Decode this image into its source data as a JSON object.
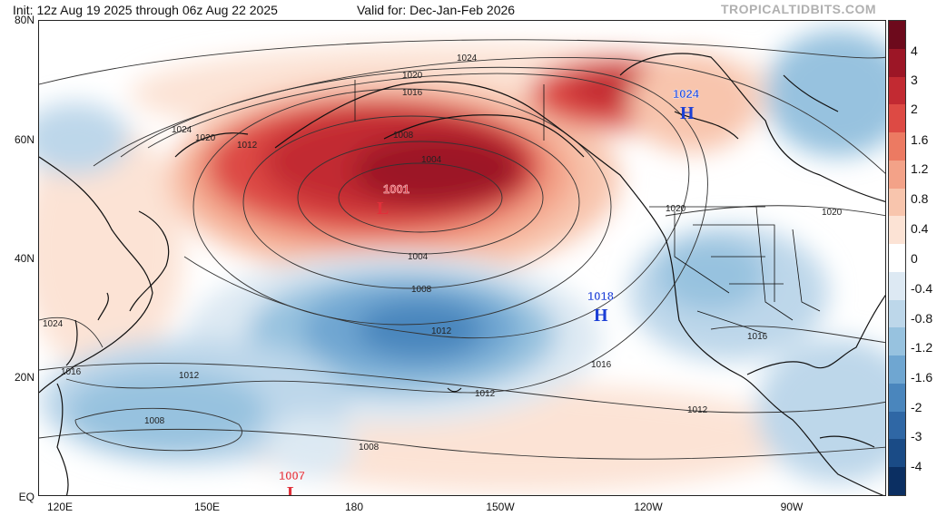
{
  "header": {
    "init": "Init: 12z Aug 19 2025 through 06z Aug 22 2025",
    "valid": "Valid for: Dec-Jan-Feb 2026",
    "brand": "TROPICALTIDBITS.COM"
  },
  "axes": {
    "lat_labels": [
      "80N",
      "60N",
      "40N",
      "20N",
      "EQ"
    ],
    "lon_labels": [
      "120E",
      "150E",
      "180",
      "150W",
      "120W",
      "90W"
    ]
  },
  "isobar_labels": [
    "1024",
    "1020",
    "1016",
    "1024",
    "1020",
    "1012",
    "1008",
    "1004",
    "1004",
    "1008",
    "1012",
    "1016",
    "1012",
    "1012",
    "1008",
    "1008",
    "1016",
    "1020",
    "1020",
    "1024",
    "1016",
    "1012"
  ],
  "pressure_centers": [
    {
      "type": "L",
      "value": "1001",
      "color": "#e0303a"
    },
    {
      "type": "H",
      "value": "1018",
      "color": "#1c3fd6"
    },
    {
      "type": "H",
      "value": "1024",
      "color": "#1c3fd6"
    },
    {
      "type": "L",
      "value": "1007",
      "color": "#e0303a"
    }
  ],
  "colorbar": {
    "labels": [
      "4",
      "3",
      "2",
      "1.6",
      "1.2",
      "0.8",
      "0.4",
      "0",
      "-0.4",
      "-0.8",
      "-1.2",
      "-1.6",
      "-2",
      "-3",
      "-4"
    ],
    "colors": [
      "#6d0a1c",
      "#9c1626",
      "#c22a32",
      "#dd4a44",
      "#ec7a62",
      "#f3a288",
      "#f8c5ad",
      "#fce3d5",
      "#ffffff",
      "#dde9f3",
      "#bdd7ea",
      "#97c2df",
      "#6fa6d1",
      "#4a86bd",
      "#2f67a5",
      "#1a4b86",
      "#0b2f62"
    ]
  }
}
